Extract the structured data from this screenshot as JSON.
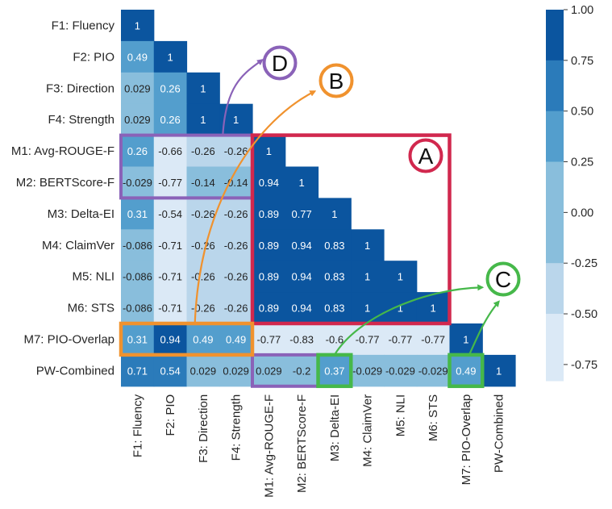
{
  "chart_data": {
    "type": "heatmap",
    "title": "",
    "row_labels": [
      "F1: Fluency",
      "F2: PIO",
      "F3: Direction",
      "F4: Strength",
      "M1: Avg-ROUGE-F",
      "M2: BERTScore-F",
      "M3: Delta-EI",
      "M4: ClaimVer",
      "M5: NLI",
      "M6: STS",
      "M7: PIO-Overlap",
      "PW-Combined"
    ],
    "col_labels": [
      "F1: Fluency",
      "F2: PIO",
      "F3: Direction",
      "F4: Strength",
      "M1: Avg-ROUGE-F",
      "M2: BERTScore-F",
      "M3: Delta-EI",
      "M4: ClaimVer",
      "M5: NLI",
      "M6: STS",
      "M7: PIO-Overlap",
      "PW-Combined"
    ],
    "values": [
      [
        1
      ],
      [
        0.49,
        1
      ],
      [
        0.029,
        0.26,
        1
      ],
      [
        0.029,
        0.26,
        1,
        1
      ],
      [
        0.26,
        -0.66,
        -0.26,
        -0.26,
        1
      ],
      [
        -0.029,
        -0.77,
        -0.14,
        -0.14,
        0.94,
        1
      ],
      [
        0.31,
        -0.54,
        -0.26,
        -0.26,
        0.89,
        0.77,
        1
      ],
      [
        -0.086,
        -0.71,
        -0.26,
        -0.26,
        0.89,
        0.94,
        0.83,
        1
      ],
      [
        -0.086,
        -0.71,
        -0.26,
        -0.26,
        0.89,
        0.94,
        0.83,
        1,
        1
      ],
      [
        -0.086,
        -0.71,
        -0.26,
        -0.26,
        0.89,
        0.94,
        0.83,
        1,
        1,
        1
      ],
      [
        0.31,
        0.94,
        0.49,
        0.49,
        -0.77,
        -0.83,
        -0.6,
        -0.77,
        -0.77,
        -0.77,
        1
      ],
      [
        0.71,
        0.54,
        0.029,
        0.029,
        0.029,
        -0.2,
        0.37,
        -0.029,
        -0.029,
        -0.029,
        0.49,
        1
      ]
    ],
    "colorbar": {
      "ticks": [
        "1.00",
        "0.75",
        "0.50",
        "0.25",
        "0.00",
        "-0.25",
        "-0.50",
        "-0.75"
      ],
      "tick_values": [
        1.0,
        0.75,
        0.5,
        0.25,
        0.0,
        -0.25,
        -0.5,
        -0.75
      ],
      "range": [
        -0.83,
        1.0
      ],
      "colors": [
        "#dbe9f6",
        "#bad6eb",
        "#89bedc",
        "#539ecd",
        "#2b7bba",
        "#0b559f"
      ]
    },
    "annotations": [
      {
        "label": "A",
        "color": "#d1284e"
      },
      {
        "label": "B",
        "color": "#f0922e"
      },
      {
        "label": "C",
        "color": "#46b84a"
      },
      {
        "label": "D",
        "color": "#8a62b8"
      }
    ]
  }
}
